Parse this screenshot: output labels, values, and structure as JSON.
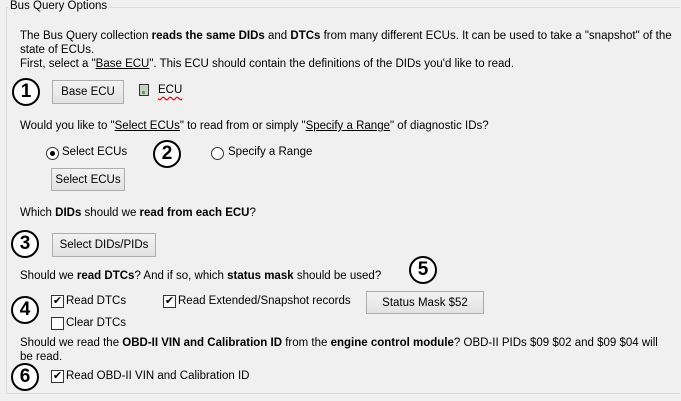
{
  "group_title": "Bus Query Options",
  "intro": {
    "t1": "The Bus Query collection ",
    "b1": "reads the same DIDs",
    "t2": " and ",
    "b2": "DTCs",
    "t3": " from many different ECUs. It can be used to take a \"snapshot\" of the",
    "line2": "state of ECUs.",
    "l3a": "First, select a \"",
    "l3link": "Base ECU",
    "l3b": "\". This ECU should contain the definitions of the DIDs you'd like to read."
  },
  "steps": [
    "1",
    "2",
    "3",
    "4",
    "5",
    "6"
  ],
  "base_ecu_button": "Base ECU",
  "ecu_label": "ECU",
  "question_select": {
    "a": "Would you like to \"",
    "link1": "Select ECUs",
    "b": "\" to read from or simply \"",
    "link2": "Specify a Range",
    "c": "\" of diagnostic IDs?"
  },
  "radio_select_ecus": "Select ECUs",
  "radio_specify_range": "Specify a Range",
  "radio_selected": "Select ECUs",
  "select_ecus_button": "Select ECUs",
  "question_dids": {
    "a": "Which ",
    "b": "DIDs",
    "c": " should we ",
    "d": "read from each ECU",
    "e": "?"
  },
  "select_dids_button": "Select DIDs/PIDs",
  "question_dtcs": {
    "a": "Should we ",
    "b": "read DTCs",
    "c": "? And if so, which ",
    "d": "status mask",
    "e": " should be used?"
  },
  "read_dtcs": {
    "label": "Read DTCs",
    "checked": true
  },
  "read_extended": {
    "label": "Read Extended/Snapshot records",
    "checked": true
  },
  "clear_dtcs": {
    "label": "Clear DTCs",
    "checked": false
  },
  "status_mask_button": "Status Mask $52",
  "question_obd": {
    "a": "Should we read the ",
    "b": "OBD-II VIN and Calibration ID",
    "c": " from the ",
    "d": "engine control module",
    "e": "? OBD-II PIDs $09 $02 and $09 $04 will",
    "line2": "be read."
  },
  "read_obd": {
    "label": "Read OBD-II VIN and Calibration ID",
    "checked": true
  }
}
